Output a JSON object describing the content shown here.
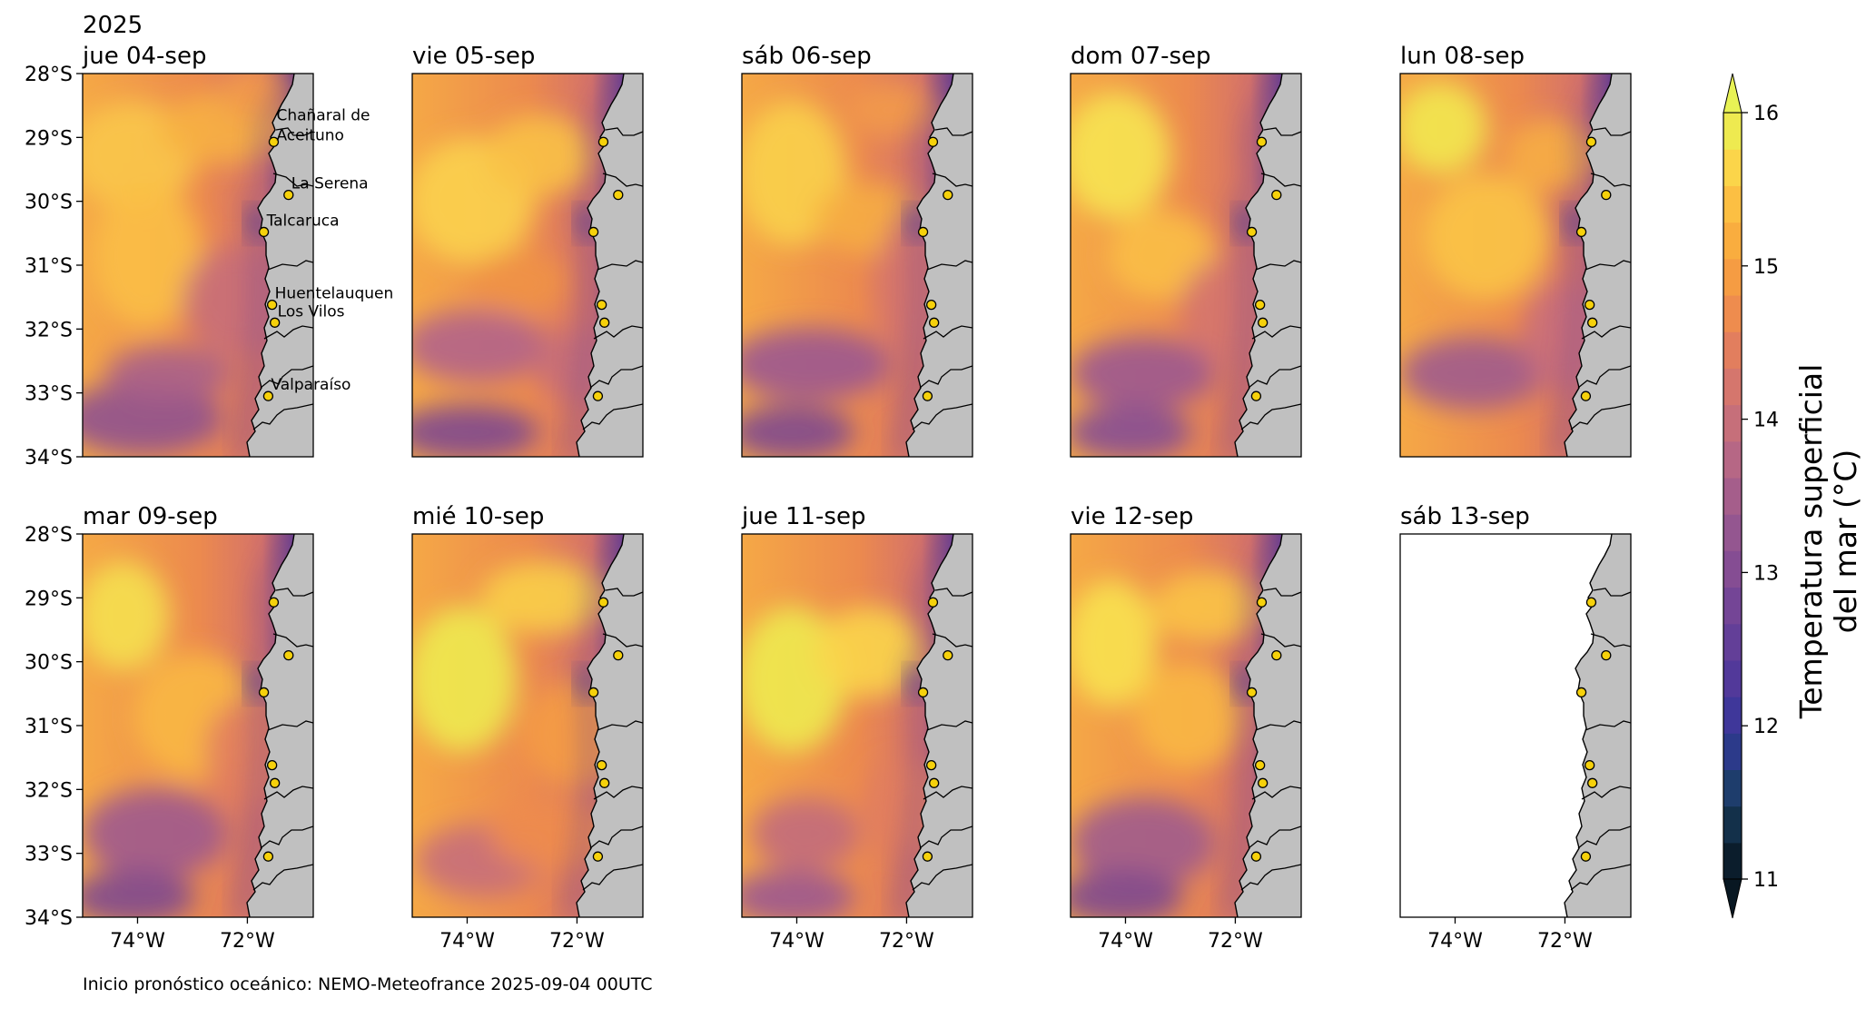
{
  "year": "2025",
  "footer": "Inicio pronóstico oceánico: NEMO-Meteofrance 2025-09-04 00UTC",
  "panels": [
    {
      "title": "jue 04-sep",
      "has_data": true
    },
    {
      "title": "vie 05-sep",
      "has_data": true
    },
    {
      "title": "sáb 06-sep",
      "has_data": true
    },
    {
      "title": "dom 07-sep",
      "has_data": true
    },
    {
      "title": "lun 08-sep",
      "has_data": true
    },
    {
      "title": "mar 09-sep",
      "has_data": true
    },
    {
      "title": "mié 10-sep",
      "has_data": true
    },
    {
      "title": "jue 11-sep",
      "has_data": true
    },
    {
      "title": "vie 12-sep",
      "has_data": true
    },
    {
      "title": "sáb 13-sep",
      "has_data": false
    }
  ],
  "lat_ticks": [
    {
      "value": -28,
      "label": "28°S"
    },
    {
      "value": -29,
      "label": "29°S"
    },
    {
      "value": -30,
      "label": "30°S"
    },
    {
      "value": -31,
      "label": "31°S"
    },
    {
      "value": -32,
      "label": "32°S"
    },
    {
      "value": -33,
      "label": "33°S"
    },
    {
      "value": -34,
      "label": "34°S"
    }
  ],
  "lon_ticks": [
    {
      "value": -74,
      "label": "74°W"
    },
    {
      "value": -72,
      "label": "72°W"
    }
  ],
  "extent": {
    "lon_min": -75.0,
    "lon_max": -70.8,
    "lat_min": -34.0,
    "lat_max": -28.0
  },
  "stations": [
    {
      "name": "Chañaral de Aceituno",
      "lines": [
        "Chañaral de",
        "Aceituno"
      ],
      "lon": -71.52,
      "lat": -29.07
    },
    {
      "name": "La Serena",
      "lines": [
        "La Serena"
      ],
      "lon": -71.25,
      "lat": -29.9
    },
    {
      "name": "Talcaruca",
      "lines": [
        "Talcaruca"
      ],
      "lon": -71.7,
      "lat": -30.48
    },
    {
      "name": "Huentelauquen",
      "lines": [
        "Huentelauquen"
      ],
      "lon": -71.55,
      "lat": -31.62
    },
    {
      "name": "Los Vilos",
      "lines": [
        "Los Vilos"
      ],
      "lon": -71.5,
      "lat": -31.9
    },
    {
      "name": "Valparaíso",
      "lines": [
        "Valparaíso"
      ],
      "lon": -71.62,
      "lat": -33.05
    }
  ],
  "colorbar": {
    "label_line1": "Temperatura superficial",
    "label_line2": "del mar (°C)",
    "min": 11,
    "max": 16,
    "ticks": [
      {
        "value": 11,
        "label": "11"
      },
      {
        "value": 12,
        "label": "12"
      },
      {
        "value": 13,
        "label": "13"
      },
      {
        "value": 14,
        "label": "14"
      },
      {
        "value": 15,
        "label": "15"
      },
      {
        "value": 16,
        "label": "16"
      }
    ],
    "colors": [
      "#0b1d2c",
      "#13304a",
      "#1e3d6c",
      "#2c3a8a",
      "#3f379a",
      "#52399a",
      "#633f98",
      "#744596",
      "#854d93",
      "#945690",
      "#a55e8b",
      "#b66785",
      "#c66f7a",
      "#d5766d",
      "#e27e5e",
      "#ee8c4e",
      "#f59c43",
      "#f9ad3f",
      "#fcbf43",
      "#fbd54a",
      "#eeea50"
    ],
    "over_color": "#e8f255",
    "under_color": "#081722"
  }
}
